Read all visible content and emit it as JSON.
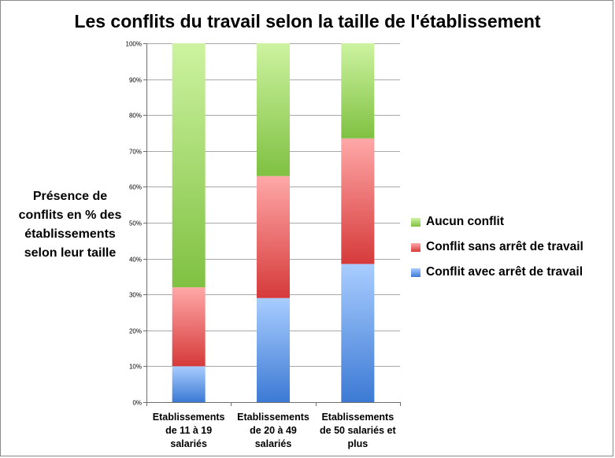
{
  "chart_data": {
    "type": "bar",
    "stacked": true,
    "percent": true,
    "title": "Les conflits du travail selon la taille de l'établissement",
    "ylabel_lines": [
      "Présence de",
      "conflits en % des",
      "établissements",
      "selon leur taille"
    ],
    "xlabel": "",
    "ylim": [
      0,
      100
    ],
    "y_ticks": [
      "0%",
      "10%",
      "20%",
      "30%",
      "40%",
      "50%",
      "60%",
      "70%",
      "80%",
      "90%",
      "100%"
    ],
    "grid": true,
    "legend_position": "right",
    "categories": [
      "Etablissements de 11 à 19 salariés",
      "Etablissements de 20 à 49 salariés",
      "Etablissements de 50 salariés et plus"
    ],
    "category_lines": [
      [
        "Etablissements",
        "de 11 à 19",
        "salariés"
      ],
      [
        "Etablissements",
        "de 20 à 49",
        "salariés"
      ],
      [
        "Etablissements",
        "de 50 salariés et",
        "plus"
      ]
    ],
    "series": [
      {
        "name": "Conflit avec arrêt de travail",
        "values": [
          10,
          29,
          38.5
        ],
        "color_light": "#a9cdff",
        "color_dark": "#3c7ad4"
      },
      {
        "name": "Conflit sans arrêt de travail",
        "values": [
          22,
          34,
          35
        ],
        "color_light": "#ffa8a8",
        "color_dark": "#d63a3a"
      },
      {
        "name": "Aucun conflit",
        "values": [
          68,
          37,
          26.5
        ],
        "color_light": "#cdf3a0",
        "color_dark": "#7fc142"
      }
    ],
    "legend_order": [
      "Aucun conflit",
      "Conflit sans arrêt de travail",
      "Conflit avec arrêt de travail"
    ]
  }
}
